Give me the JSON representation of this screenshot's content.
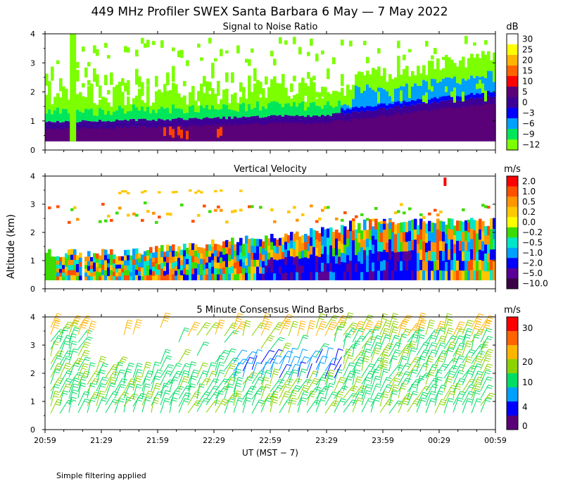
{
  "figure": {
    "title": "449 MHz Profiler SWEX Santa Barbara  6 May —  7 May 2022",
    "ylabel": "Altitude (km)",
    "xlabel": "UT  (MST − 7)",
    "footnote": "Simple filtering applied"
  },
  "chart_data": [
    {
      "type": "heatmap",
      "title": "Signal to Noise Ratio",
      "colorbar_unit": "dB",
      "colorbar_ticks": [
        "30",
        "25",
        "20",
        "15",
        "10",
        "5",
        "0",
        "−3",
        "−6",
        "−9",
        "−12"
      ],
      "colorbar_colors": [
        "#ffffff",
        "#ffff00",
        "#ffb400",
        "#ff6400",
        "#ff0000",
        "#5a0078",
        "#3c0096",
        "#0000ff",
        "#00a0ff",
        "#00e65a",
        "#7cff00"
      ],
      "x_ticks": [
        "20:59",
        "21:29",
        "21:59",
        "22:29",
        "22:59",
        "23:29",
        "23:59",
        "00:29",
        "00:59"
      ],
      "y_ticks": [
        "0",
        "1",
        "2",
        "3",
        "4"
      ],
      "ylim": [
        0,
        4
      ],
      "xlim_hours": [
        0,
        4
      ]
    },
    {
      "type": "heatmap",
      "title": "Vertical Velocity",
      "colorbar_unit": "m/s",
      "colorbar_ticks": [
        "2.0",
        "1.0",
        "0.5",
        "0.2",
        "0.0",
        "−0.2",
        "−0.5",
        "−1.0",
        "−2.0",
        "−5.0",
        "−10.0"
      ],
      "colorbar_colors": [
        "#ff0000",
        "#ff5000",
        "#ff9600",
        "#ffc800",
        "#ffff00",
        "#3cdc00",
        "#00e6c8",
        "#00a0ff",
        "#0000ff",
        "#5a0096",
        "#3c0046"
      ],
      "x_ticks": [
        "20:59",
        "21:29",
        "21:59",
        "22:29",
        "22:59",
        "23:29",
        "23:59",
        "00:29",
        "00:59"
      ],
      "y_ticks": [
        "0",
        "1",
        "2",
        "3",
        "4"
      ],
      "ylim": [
        0,
        4
      ],
      "xlim_hours": [
        0,
        4
      ]
    },
    {
      "type": "scatter",
      "title": "5 Minute Consensus Wind Barbs",
      "colorbar_unit": "m/s",
      "colorbar_ticks": [
        "30",
        "20",
        "10",
        "4",
        "0"
      ],
      "colorbar_colors": [
        "#ff0000",
        "#ff6400",
        "#ffb400",
        "#8cd200",
        "#00dc64",
        "#00a0ff",
        "#0000ff",
        "#5a0078"
      ],
      "x_ticks": [
        "20:59",
        "21:29",
        "21:59",
        "22:29",
        "22:59",
        "23:29",
        "23:59",
        "00:29",
        "00:59"
      ],
      "y_ticks": [
        "0",
        "1",
        "2",
        "3",
        "4"
      ],
      "ylim": [
        0,
        4
      ],
      "xlim_hours": [
        0,
        4
      ]
    }
  ]
}
